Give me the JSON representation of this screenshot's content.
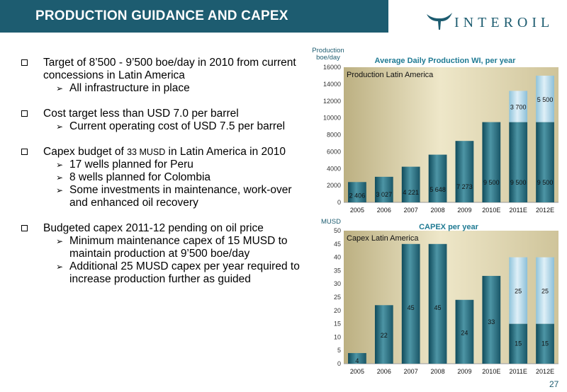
{
  "header": {
    "title": "PRODUCTION GUIDANCE AND CAPEX",
    "logo_text": "INTEROIL"
  },
  "bullets": {
    "b1_text": "Target of 8’500 - 9’500 boe/day in 2010 from current concessions in Latin America",
    "b1_sub1": "All infrastructure in place",
    "b2_text": "Cost target less than USD 7.0 per barrel",
    "b2_sub1": "Current operating cost of USD 7.5 per barrel",
    "b3_pre": "Capex budget of ",
    "b3_amount": "33 MUSD",
    "b3_post": " in Latin America in 2010",
    "b3_sub1": "17 wells planned for Peru",
    "b3_sub2": "8 wells planned for Colombia",
    "b3_sub3": "Some investments in maintenance, work-over and enhanced oil recovery",
    "b4_text": "Budgeted capex 2011-12 pending on oil price",
    "b4_sub1": "Minimum maintenance capex of 15 MUSD to maintain production at 9’500 boe/day",
    "b4_sub2": "Additional 25 MUSD capex per year required to increase production further as guided"
  },
  "page_number": "27",
  "colors": {
    "brand": "#1d5c70",
    "plot_bg": "#d8cfa7",
    "bar_dark": "#2a6f80",
    "bar_light": "#b9dcec",
    "chart_title": "#1f7a93"
  },
  "chart_data": [
    {
      "type": "bar",
      "title": "Average Daily Production WI, per year",
      "subtitle": "Production Latin America",
      "ylabel": "Production boe/day",
      "ylabel_lines": [
        "Production",
        "boe/day"
      ],
      "ylim": [
        0,
        16000
      ],
      "yticks": [
        "0",
        "2000",
        "4000",
        "6000",
        "8000",
        "10000",
        "12000",
        "14000",
        "16000"
      ],
      "categories": [
        "2005",
        "2006",
        "2007",
        "2008",
        "2009",
        "2010E",
        "2011E",
        "2012E"
      ],
      "stacked": true,
      "series": [
        {
          "values": [
            2406,
            3027,
            4221,
            5648,
            7273,
            9500,
            9500,
            9500
          ],
          "labels": [
            "2 406",
            "3 027",
            "4 221",
            "5 648",
            "7 273",
            "9 500",
            "9 500",
            "9 500"
          ]
        },
        {
          "values": [
            0,
            0,
            0,
            0,
            0,
            0,
            3700,
            5500
          ],
          "labels": [
            "",
            "",
            "",
            "",
            "",
            "",
            "3 700",
            "5 500"
          ]
        }
      ]
    },
    {
      "type": "bar",
      "title": "CAPEX per year",
      "subtitle": "Capex Latin America",
      "ylabel": "MUSD",
      "ylabel_lines": [
        "MUSD"
      ],
      "ylim": [
        0,
        50
      ],
      "yticks": [
        "0",
        "5",
        "10",
        "15",
        "20",
        "25",
        "30",
        "35",
        "40",
        "45",
        "50"
      ],
      "categories": [
        "2005",
        "2006",
        "2007",
        "2008",
        "2009",
        "2010E",
        "2011E",
        "2012E"
      ],
      "stacked": true,
      "series": [
        {
          "values": [
            4,
            22,
            45,
            45,
            24,
            33,
            15,
            15
          ],
          "labels": [
            "4",
            "22",
            "45",
            "45",
            "24",
            "33",
            "15",
            "15"
          ]
        },
        {
          "values": [
            0,
            0,
            0,
            0,
            0,
            0,
            25,
            25
          ],
          "labels": [
            "",
            "",
            "",
            "",
            "",
            "",
            "25",
            "25"
          ]
        }
      ]
    }
  ]
}
